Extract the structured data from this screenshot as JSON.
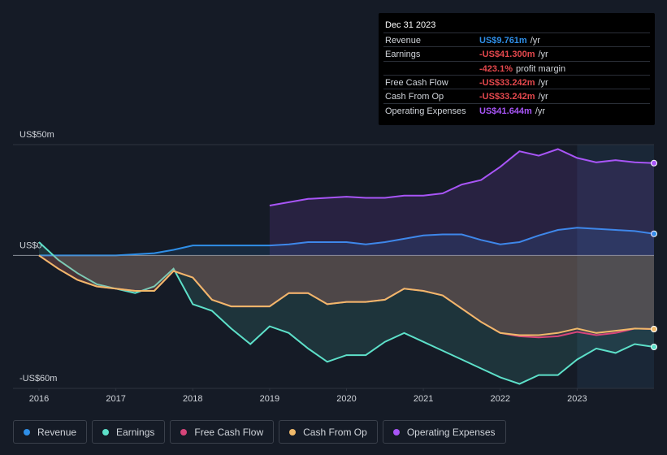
{
  "chart_data": {
    "type": "line",
    "x": [
      2016,
      2016.25,
      2016.5,
      2016.75,
      2017,
      2017.25,
      2017.5,
      2017.75,
      2018,
      2018.25,
      2018.5,
      2018.75,
      2019,
      2019.25,
      2019.5,
      2019.75,
      2020,
      2020.25,
      2020.5,
      2020.75,
      2021,
      2021.25,
      2021.5,
      2021.75,
      2022,
      2022.25,
      2022.5,
      2022.75,
      2023,
      2023.25,
      2023.5,
      2023.75,
      2024
    ],
    "xlim": [
      2016,
      2024
    ],
    "xticks": [
      2016,
      2017,
      2018,
      2019,
      2020,
      2021,
      2022,
      2023
    ],
    "ylim": [
      -60,
      50
    ],
    "yticks": [
      {
        "value": 50,
        "label": "US$50m"
      },
      {
        "value": 0,
        "label": "US$0"
      },
      {
        "value": -60,
        "label": "-US$60m"
      }
    ],
    "series": [
      {
        "name": "Revenue",
        "color": "#2f8fe8",
        "values": [
          0,
          0,
          0,
          0,
          0,
          0.5,
          1,
          2.5,
          4.5,
          4.5,
          4.5,
          4.5,
          4.5,
          5,
          6,
          6,
          6,
          5,
          6,
          7.5,
          9,
          9.5,
          9.5,
          7,
          5,
          6,
          9,
          11.5,
          12.5,
          12,
          11.5,
          11,
          9.761
        ]
      },
      {
        "name": "Earnings",
        "color": "#5de0c9",
        "values": [
          6,
          -2,
          -8,
          -13,
          -15,
          -17,
          -14,
          -6,
          -22,
          -25,
          -33,
          -40,
          -32,
          -35,
          -42,
          -48,
          -45,
          -45,
          -39,
          -35,
          -39,
          -43,
          -47,
          -51,
          -55,
          -58,
          -54,
          -54,
          -47,
          -42,
          -44,
          -40,
          -41.3
        ]
      },
      {
        "name": "Free Cash Flow",
        "color": "#d6457a",
        "values": [
          0,
          -6,
          -11,
          -14,
          -15,
          -16,
          -16,
          -7,
          -10,
          -20,
          -23,
          -23,
          -23,
          -17,
          -17,
          -22,
          -21,
          -21,
          -20,
          -15,
          -16,
          -18,
          -24,
          -30,
          -35,
          -36.5,
          -37,
          -36.5,
          -34.5,
          -36,
          -35,
          -33,
          -33.242
        ]
      },
      {
        "name": "Cash From Op",
        "color": "#f0b96a",
        "values": [
          0,
          -6,
          -11,
          -14,
          -15,
          -16,
          -16,
          -7,
          -10,
          -20,
          -23,
          -23,
          -23,
          -17,
          -17,
          -22,
          -21,
          -21,
          -20,
          -15,
          -16,
          -18,
          -24,
          -30,
          -35,
          -36,
          -36,
          -35,
          -33,
          -35,
          -34,
          -33,
          -33.242
        ]
      },
      {
        "name": "Operating Expenses",
        "color": "#a855f7",
        "values": [
          null,
          null,
          null,
          null,
          null,
          null,
          null,
          null,
          null,
          null,
          null,
          null,
          22.5,
          24,
          25.5,
          26,
          26.5,
          26,
          26,
          27,
          27,
          28,
          32,
          34,
          40,
          47,
          45,
          48,
          44,
          42,
          43,
          42,
          41.644
        ]
      }
    ]
  },
  "tooltip": {
    "date": "Dec 31 2023",
    "rows": [
      {
        "label": "Revenue",
        "value": "US$9.761m",
        "unit": "/yr",
        "color": "#2f8fe8"
      },
      {
        "label": "Earnings",
        "value": "-US$41.300m",
        "unit": "/yr",
        "color": "#e5484d"
      },
      {
        "label": "",
        "value": "-423.1%",
        "unit": "profit margin",
        "color": "#e5484d"
      },
      {
        "label": "Free Cash Flow",
        "value": "-US$33.242m",
        "unit": "/yr",
        "color": "#e5484d"
      },
      {
        "label": "Cash From Op",
        "value": "-US$33.242m",
        "unit": "/yr",
        "color": "#e5484d"
      },
      {
        "label": "Operating Expenses",
        "value": "US$41.644m",
        "unit": "/yr",
        "color": "#a855f7"
      }
    ]
  }
}
